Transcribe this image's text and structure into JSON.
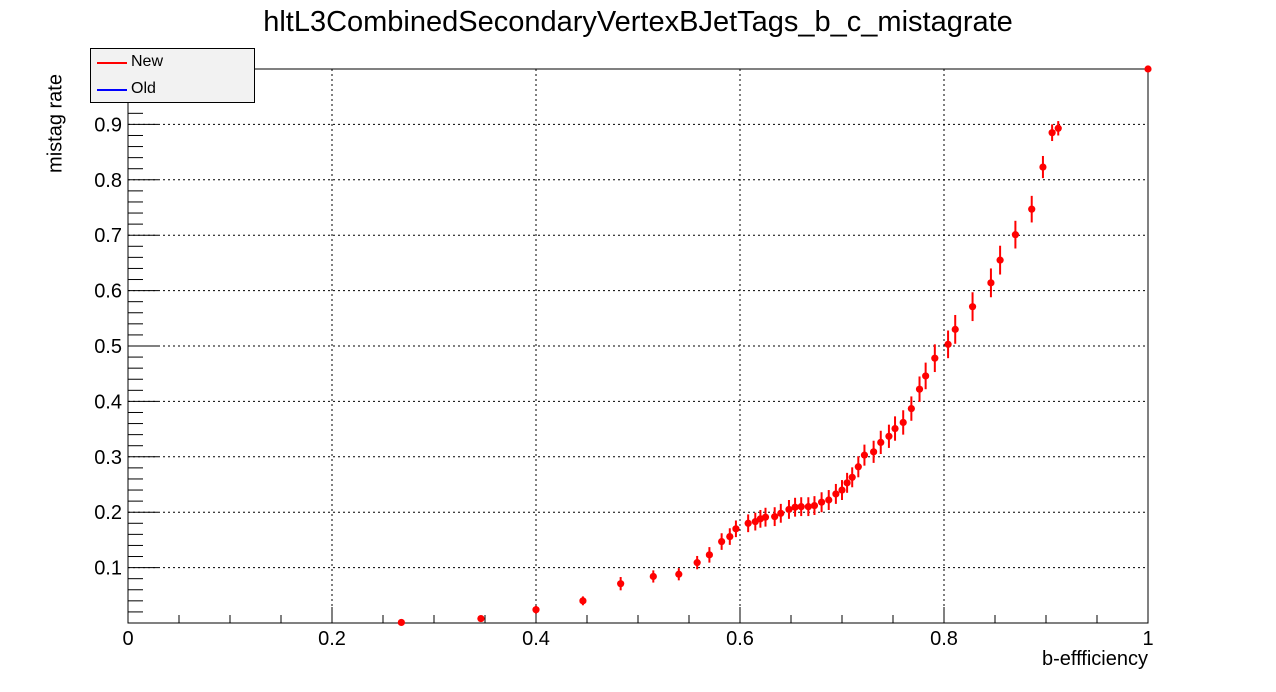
{
  "chart_data": {
    "type": "scatter",
    "title": "hltL3CombinedSecondaryVertexBJetTags_b_c_mistagrate",
    "xlabel": "b-effficiency",
    "ylabel": "mistag rate",
    "xlim": [
      0,
      1
    ],
    "ylim": [
      0,
      1
    ],
    "grid": true,
    "legend_position": "top-left",
    "xticks": [
      "0",
      "0.2",
      "0.4",
      "0.6",
      "0.8",
      "1"
    ],
    "yticks": [
      "0.1",
      "0.2",
      "0.3",
      "0.4",
      "0.5",
      "0.6",
      "0.7",
      "0.8",
      "0.9"
    ],
    "legend": [
      {
        "label": "New",
        "color": "#ff0000"
      },
      {
        "label": "Old",
        "color": "#0000ff"
      }
    ],
    "series": [
      {
        "name": "New",
        "color": "#ff0000",
        "points": [
          [
            0.268,
            0.001,
            0.002
          ],
          [
            0.346,
            0.008,
            0.004
          ],
          [
            0.4,
            0.024,
            0.007
          ],
          [
            0.446,
            0.04,
            0.008
          ],
          [
            0.483,
            0.071,
            0.012
          ],
          [
            0.515,
            0.084,
            0.011
          ],
          [
            0.54,
            0.088,
            0.011
          ],
          [
            0.558,
            0.109,
            0.012
          ],
          [
            0.57,
            0.123,
            0.014
          ],
          [
            0.582,
            0.147,
            0.015
          ],
          [
            0.59,
            0.156,
            0.015
          ],
          [
            0.596,
            0.17,
            0.015
          ],
          [
            0.608,
            0.18,
            0.016
          ],
          [
            0.615,
            0.183,
            0.016
          ],
          [
            0.62,
            0.188,
            0.016
          ],
          [
            0.625,
            0.191,
            0.017
          ],
          [
            0.634,
            0.192,
            0.017
          ],
          [
            0.64,
            0.198,
            0.017
          ],
          [
            0.648,
            0.205,
            0.017
          ],
          [
            0.654,
            0.209,
            0.017
          ],
          [
            0.66,
            0.21,
            0.017
          ],
          [
            0.667,
            0.21,
            0.017
          ],
          [
            0.673,
            0.212,
            0.017
          ],
          [
            0.68,
            0.218,
            0.018
          ],
          [
            0.687,
            0.222,
            0.018
          ],
          [
            0.694,
            0.233,
            0.018
          ],
          [
            0.7,
            0.24,
            0.018
          ],
          [
            0.705,
            0.253,
            0.018
          ],
          [
            0.71,
            0.263,
            0.018
          ],
          [
            0.716,
            0.282,
            0.019
          ],
          [
            0.722,
            0.303,
            0.019
          ],
          [
            0.731,
            0.309,
            0.02
          ],
          [
            0.738,
            0.326,
            0.021
          ],
          [
            0.746,
            0.337,
            0.021
          ],
          [
            0.752,
            0.351,
            0.022
          ],
          [
            0.76,
            0.362,
            0.022
          ],
          [
            0.768,
            0.387,
            0.022
          ],
          [
            0.776,
            0.422,
            0.023
          ],
          [
            0.782,
            0.446,
            0.024
          ],
          [
            0.791,
            0.478,
            0.025
          ],
          [
            0.804,
            0.503,
            0.025
          ],
          [
            0.811,
            0.53,
            0.026
          ],
          [
            0.828,
            0.571,
            0.026
          ],
          [
            0.846,
            0.614,
            0.026
          ],
          [
            0.855,
            0.655,
            0.026
          ],
          [
            0.87,
            0.701,
            0.025
          ],
          [
            0.886,
            0.747,
            0.024
          ],
          [
            0.897,
            0.823,
            0.02
          ],
          [
            0.906,
            0.885,
            0.015
          ],
          [
            0.912,
            0.893,
            0.013
          ],
          [
            1.0,
            1.0,
            0.0
          ]
        ]
      }
    ]
  }
}
